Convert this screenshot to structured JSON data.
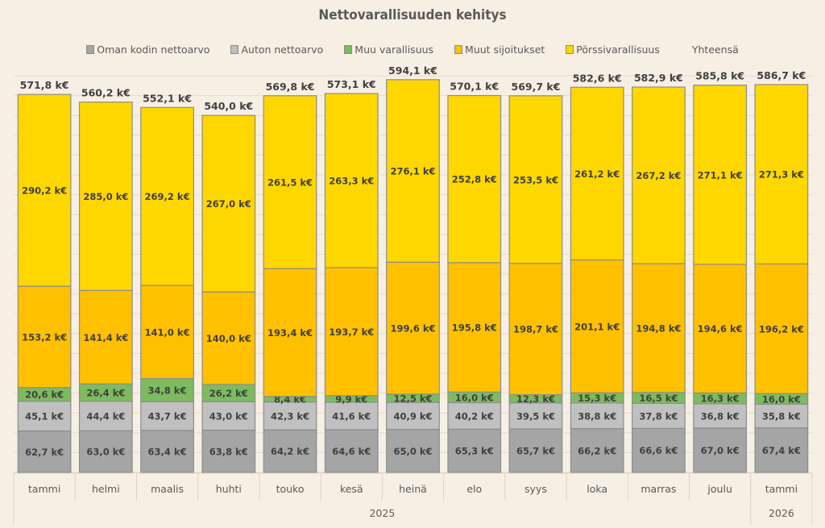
{
  "chart_data": {
    "type": "bar",
    "stacked": true,
    "title": "Nettovarallisuuden kehitys",
    "xlabel": "",
    "ylabel": "",
    "unit": "k€",
    "ylim": [
      0,
      600
    ],
    "grid": true,
    "legend_position": "top",
    "categories": [
      "tammi",
      "helmi",
      "maalis",
      "huhti",
      "touko",
      "kesä",
      "heinä",
      "elo",
      "syys",
      "loka",
      "marras",
      "joulu",
      "tammi"
    ],
    "category_groups": [
      {
        "label": "2025",
        "count": 12
      },
      {
        "label": "2026",
        "count": 1
      }
    ],
    "series": [
      {
        "name": "Oman kodin nettoarvo",
        "color": "#a5a5a5",
        "values": [
          62.7,
          63.0,
          63.4,
          63.8,
          64.2,
          64.6,
          65.0,
          65.3,
          65.7,
          66.2,
          66.6,
          67.0,
          67.4
        ],
        "labels": [
          "62,7 k€",
          "63,0 k€",
          "63,4 k€",
          "63,8 k€",
          "64,2 k€",
          "64,6 k€",
          "65,0 k€",
          "65,3 k€",
          "65,7 k€",
          "66,2 k€",
          "66,6 k€",
          "67,0 k€",
          "67,4 k€"
        ]
      },
      {
        "name": "Auton nettoarvo",
        "color": "#c0c0c0",
        "values": [
          45.1,
          44.4,
          43.7,
          43.0,
          42.3,
          41.6,
          40.9,
          40.2,
          39.5,
          38.8,
          37.8,
          36.8,
          35.8
        ],
        "labels": [
          "45,1 k€",
          "44,4 k€",
          "43,7 k€",
          "43,0 k€",
          "42,3 k€",
          "41,6 k€",
          "40,9 k€",
          "40,2 k€",
          "39,5 k€",
          "38,8 k€",
          "37,8 k€",
          "36,8 k€",
          "35,8 k€"
        ]
      },
      {
        "name": "Muu varallisuus",
        "color": "#7cbb5e",
        "values": [
          20.6,
          26.4,
          34.8,
          26.2,
          8.4,
          9.9,
          12.5,
          16.0,
          12.3,
          15.3,
          16.5,
          16.3,
          16.0
        ],
        "labels": [
          "20,6 k€",
          "26,4 k€",
          "34,8 k€",
          "26,2 k€",
          "8,4 k€",
          "9,9 k€",
          "12,5 k€",
          "16,0 k€",
          "12,3 k€",
          "15,3 k€",
          "16,5 k€",
          "16,3 k€",
          "16,0 k€"
        ]
      },
      {
        "name": "Muut sijoitukset",
        "color": "#ffc000",
        "values": [
          153.2,
          141.4,
          141.0,
          140.0,
          193.4,
          193.7,
          199.6,
          195.8,
          198.7,
          201.1,
          194.8,
          194.6,
          196.2
        ],
        "labels": [
          "153,2 k€",
          "141,4 k€",
          "141,0 k€",
          "140,0 k€",
          "193,4 k€",
          "193,7 k€",
          "199,6 k€",
          "195,8 k€",
          "198,7 k€",
          "201,1 k€",
          "194,8 k€",
          "194,6 k€",
          "196,2 k€"
        ]
      },
      {
        "name": "Pörssivarallisuus",
        "color": "#ffd700",
        "values": [
          290.2,
          285.0,
          269.2,
          267.0,
          261.5,
          263.3,
          276.1,
          252.8,
          253.5,
          261.2,
          267.2,
          271.1,
          271.3
        ],
        "labels": [
          "290,2 k€",
          "285,0 k€",
          "269,2 k€",
          "267,0 k€",
          "261,5 k€",
          "263,3 k€",
          "276,1 k€",
          "252,8 k€",
          "253,5 k€",
          "261,2 k€",
          "267,2 k€",
          "271,1 k€",
          "271,3 k€"
        ]
      }
    ],
    "totals": {
      "name": "Yhteensä",
      "values": [
        571.8,
        560.2,
        552.1,
        540.0,
        569.8,
        573.1,
        594.1,
        570.1,
        569.7,
        582.6,
        582.9,
        585.8,
        586.7
      ],
      "labels": [
        "571,8 k€",
        "560,2 k€",
        "552,1 k€",
        "540,0 k€",
        "569,8 k€",
        "573,1 k€",
        "594,1 k€",
        "570,1 k€",
        "569,7 k€",
        "582,6 k€",
        "582,9 k€",
        "585,8 k€",
        "586,7 k€"
      ]
    }
  }
}
